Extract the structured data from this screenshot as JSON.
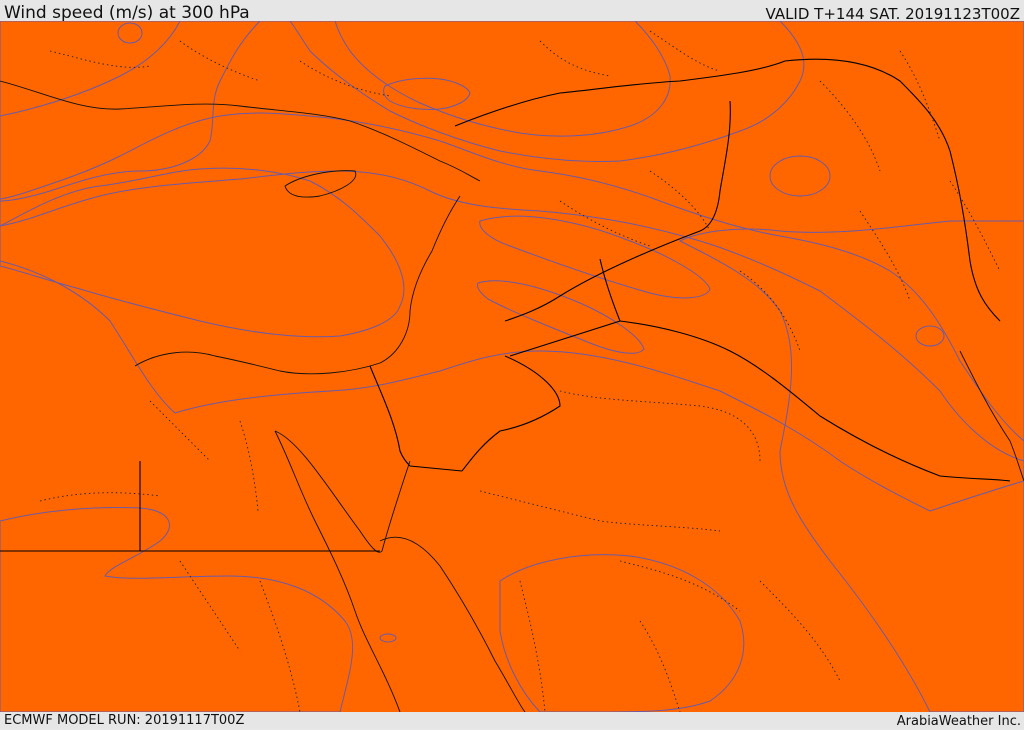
{
  "header": {
    "title": "Wind speed (m/s) at 300 hPa",
    "valid": "VALID T+144 SAT. 20191123T00Z"
  },
  "footer": {
    "model_run": "ECMWF MODEL RUN: 20191117T00Z",
    "credit": "ArabiaWeather Inc."
  },
  "map": {
    "variable": "wind speed",
    "level": "300 hPa",
    "units": "m/s",
    "colors": {
      "white_zone": "#ffffff",
      "peach_zone": "#ffdead",
      "yellow_zone": "#ffff00",
      "gold_zone": "#ffd700",
      "amber_zone": "#ffb300",
      "orange_light_zone": "#ff9900",
      "orange_zone": "#ff7a00",
      "dark_orange_zone": "#ff6600",
      "red_orange_zone": "#ff4500",
      "contour_line": "#6a5aa8"
    }
  }
}
